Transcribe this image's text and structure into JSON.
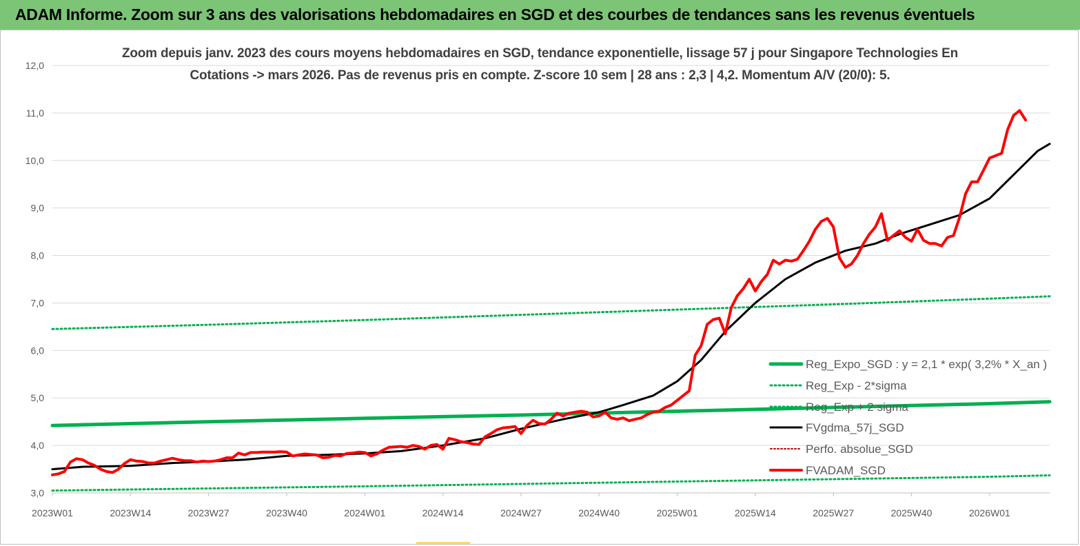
{
  "header": {
    "title": "ADAM Informe. Zoom sur 3 ans des valorisations hebdomadaires en SGD et des courbes de tendances sans les revenus éventuels"
  },
  "colors": {
    "banner": "#7cc576",
    "reg_expo": "#00b050",
    "fvgdma": "#000000",
    "perfo": "#c00000",
    "fvadam": "#ff0000",
    "grid": "#d9d9d9"
  },
  "chart_data": {
    "type": "line",
    "title_lines": [
      "Zoom depuis janv. 2023 des cours moyens hebdomadaires en SGD, tendance exponentielle, lissage 57 j pour Singapore Technologies En",
      "Cotations -> mars 2026. Pas de revenus pris en compte. Z-score 10 sem | 28 ans : 2,3 | 4,2. Momentum A/V (20/0): 5."
    ],
    "x_tick_labels": [
      "2023W01",
      "2023W14",
      "2023W27",
      "2023W40",
      "2024W01",
      "2024W14",
      "2024W27",
      "2024W40",
      "2025W01",
      "2025W14",
      "2025W27",
      "2025W40",
      "2026W01"
    ],
    "y_tick_labels": [
      "3,0",
      "4,0",
      "5,0",
      "6,0",
      "7,0",
      "8,0",
      "9,0",
      "10,0",
      "11,0",
      "12,0"
    ],
    "ylim": [
      3,
      12
    ],
    "x_range_weeks": [
      0,
      166
    ],
    "grid": "horizontal",
    "legend_position": "right",
    "series": [
      {
        "name": "Reg_Expo_SGD : y = 2,1 * exp( 3,2% *  X_an )",
        "style": "solid-thick",
        "points": [
          [
            0,
            4.42
          ],
          [
            26,
            4.5
          ],
          [
            52,
            4.57
          ],
          [
            78,
            4.64
          ],
          [
            104,
            4.72
          ],
          [
            130,
            4.8
          ],
          [
            156,
            4.88
          ],
          [
            166,
            4.92
          ]
        ]
      },
      {
        "name": "Reg_Exp - 2*sigma",
        "style": "dotted",
        "points": [
          [
            0,
            3.05
          ],
          [
            52,
            3.14
          ],
          [
            104,
            3.24
          ],
          [
            156,
            3.34
          ],
          [
            166,
            3.37
          ]
        ]
      },
      {
        "name": "Reg_Exp + 2 sigma",
        "style": "dotted",
        "points": [
          [
            0,
            6.45
          ],
          [
            26,
            6.54
          ],
          [
            52,
            6.64
          ],
          [
            78,
            6.75
          ],
          [
            104,
            6.86
          ],
          [
            130,
            6.97
          ],
          [
            156,
            7.09
          ],
          [
            166,
            7.14
          ]
        ]
      },
      {
        "name": "FVgdma_57j_SGD",
        "style": "solid",
        "points": [
          [
            0,
            3.5
          ],
          [
            5,
            3.55
          ],
          [
            13,
            3.57
          ],
          [
            20,
            3.63
          ],
          [
            26,
            3.66
          ],
          [
            32,
            3.7
          ],
          [
            39,
            3.78
          ],
          [
            45,
            3.8
          ],
          [
            52,
            3.83
          ],
          [
            58,
            3.88
          ],
          [
            65,
            4.0
          ],
          [
            72,
            4.15
          ],
          [
            78,
            4.35
          ],
          [
            85,
            4.55
          ],
          [
            91,
            4.7
          ],
          [
            95,
            4.85
          ],
          [
            100,
            5.05
          ],
          [
            104,
            5.35
          ],
          [
            108,
            5.8
          ],
          [
            112,
            6.4
          ],
          [
            117,
            7.0
          ],
          [
            122,
            7.5
          ],
          [
            127,
            7.85
          ],
          [
            132,
            8.1
          ],
          [
            137,
            8.25
          ],
          [
            141,
            8.45
          ],
          [
            146,
            8.65
          ],
          [
            151,
            8.85
          ],
          [
            156,
            9.2
          ],
          [
            160,
            9.7
          ],
          [
            164,
            10.2
          ],
          [
            166,
            10.35
          ]
        ]
      },
      {
        "name": "Perfo. absolue_SGD",
        "style": "dotted-red",
        "points": []
      },
      {
        "name": "FVADAM_SGD",
        "style": "solid-thick",
        "points": [
          [
            0,
            3.38
          ],
          [
            1,
            3.4
          ],
          [
            2,
            3.45
          ],
          [
            3,
            3.65
          ],
          [
            4,
            3.72
          ],
          [
            5,
            3.7
          ],
          [
            6,
            3.63
          ],
          [
            7,
            3.58
          ],
          [
            8,
            3.5
          ],
          [
            9,
            3.45
          ],
          [
            10,
            3.43
          ],
          [
            11,
            3.5
          ],
          [
            12,
            3.62
          ],
          [
            13,
            3.7
          ],
          [
            14,
            3.67
          ],
          [
            15,
            3.66
          ],
          [
            16,
            3.63
          ],
          [
            17,
            3.63
          ],
          [
            18,
            3.67
          ],
          [
            19,
            3.7
          ],
          [
            20,
            3.73
          ],
          [
            21,
            3.7
          ],
          [
            22,
            3.68
          ],
          [
            23,
            3.68
          ],
          [
            24,
            3.65
          ],
          [
            25,
            3.67
          ],
          [
            26,
            3.66
          ],
          [
            27,
            3.67
          ],
          [
            28,
            3.7
          ],
          [
            29,
            3.74
          ],
          [
            30,
            3.74
          ],
          [
            31,
            3.84
          ],
          [
            32,
            3.8
          ],
          [
            33,
            3.85
          ],
          [
            34,
            3.85
          ],
          [
            35,
            3.86
          ],
          [
            36,
            3.86
          ],
          [
            37,
            3.86
          ],
          [
            38,
            3.87
          ],
          [
            39,
            3.86
          ],
          [
            40,
            3.78
          ],
          [
            41,
            3.8
          ],
          [
            42,
            3.82
          ],
          [
            43,
            3.81
          ],
          [
            44,
            3.8
          ],
          [
            45,
            3.74
          ],
          [
            46,
            3.75
          ],
          [
            47,
            3.79
          ],
          [
            48,
            3.78
          ],
          [
            49,
            3.83
          ],
          [
            50,
            3.84
          ],
          [
            51,
            3.86
          ],
          [
            52,
            3.85
          ],
          [
            53,
            3.78
          ],
          [
            54,
            3.82
          ],
          [
            55,
            3.9
          ],
          [
            56,
            3.96
          ],
          [
            57,
            3.97
          ],
          [
            58,
            3.98
          ],
          [
            59,
            3.96
          ],
          [
            60,
            4.0
          ],
          [
            61,
            3.98
          ],
          [
            62,
            3.92
          ],
          [
            63,
            4.0
          ],
          [
            64,
            4.02
          ],
          [
            65,
            3.92
          ],
          [
            66,
            4.15
          ],
          [
            67,
            4.12
          ],
          [
            68,
            4.08
          ],
          [
            69,
            4.06
          ],
          [
            70,
            4.03
          ],
          [
            71,
            4.02
          ],
          [
            72,
            4.18
          ],
          [
            73,
            4.25
          ],
          [
            74,
            4.33
          ],
          [
            75,
            4.37
          ],
          [
            76,
            4.38
          ],
          [
            77,
            4.4
          ],
          [
            78,
            4.25
          ],
          [
            79,
            4.42
          ],
          [
            80,
            4.53
          ],
          [
            81,
            4.46
          ],
          [
            82,
            4.45
          ],
          [
            83,
            4.55
          ],
          [
            84,
            4.68
          ],
          [
            85,
            4.62
          ],
          [
            86,
            4.68
          ],
          [
            87,
            4.7
          ],
          [
            88,
            4.72
          ],
          [
            89,
            4.7
          ],
          [
            90,
            4.6
          ],
          [
            91,
            4.62
          ],
          [
            92,
            4.7
          ],
          [
            93,
            4.58
          ],
          [
            94,
            4.55
          ],
          [
            95,
            4.58
          ],
          [
            96,
            4.52
          ],
          [
            97,
            4.55
          ],
          [
            98,
            4.58
          ],
          [
            99,
            4.65
          ],
          [
            100,
            4.7
          ],
          [
            101,
            4.72
          ],
          [
            102,
            4.8
          ],
          [
            103,
            4.85
          ],
          [
            104,
            4.95
          ],
          [
            105,
            5.05
          ],
          [
            106,
            5.15
          ],
          [
            107,
            5.9
          ],
          [
            108,
            6.1
          ],
          [
            109,
            6.55
          ],
          [
            110,
            6.65
          ],
          [
            111,
            6.68
          ],
          [
            112,
            6.35
          ],
          [
            113,
            6.9
          ],
          [
            114,
            7.15
          ],
          [
            115,
            7.3
          ],
          [
            116,
            7.5
          ],
          [
            117,
            7.25
          ],
          [
            118,
            7.45
          ],
          [
            119,
            7.6
          ],
          [
            120,
            7.9
          ],
          [
            121,
            7.82
          ],
          [
            122,
            7.9
          ],
          [
            123,
            7.88
          ],
          [
            124,
            7.92
          ],
          [
            125,
            8.1
          ],
          [
            126,
            8.3
          ],
          [
            127,
            8.55
          ],
          [
            128,
            8.72
          ],
          [
            129,
            8.78
          ],
          [
            130,
            8.6
          ],
          [
            131,
            7.95
          ],
          [
            132,
            7.75
          ],
          [
            133,
            7.82
          ],
          [
            134,
            8.0
          ],
          [
            135,
            8.25
          ],
          [
            136,
            8.45
          ],
          [
            137,
            8.6
          ],
          [
            138,
            8.88
          ],
          [
            139,
            8.32
          ],
          [
            140,
            8.42
          ],
          [
            141,
            8.52
          ],
          [
            142,
            8.38
          ],
          [
            143,
            8.3
          ],
          [
            144,
            8.55
          ],
          [
            145,
            8.32
          ],
          [
            146,
            8.25
          ],
          [
            147,
            8.25
          ],
          [
            148,
            8.2
          ],
          [
            149,
            8.38
          ],
          [
            150,
            8.42
          ],
          [
            151,
            8.8
          ],
          [
            152,
            9.3
          ],
          [
            153,
            9.55
          ],
          [
            154,
            9.55
          ],
          [
            155,
            9.8
          ],
          [
            156,
            10.05
          ],
          [
            157,
            10.1
          ],
          [
            158,
            10.15
          ],
          [
            159,
            10.65
          ],
          [
            160,
            10.95
          ],
          [
            161,
            11.05
          ],
          [
            162,
            10.85
          ]
        ]
      }
    ]
  }
}
